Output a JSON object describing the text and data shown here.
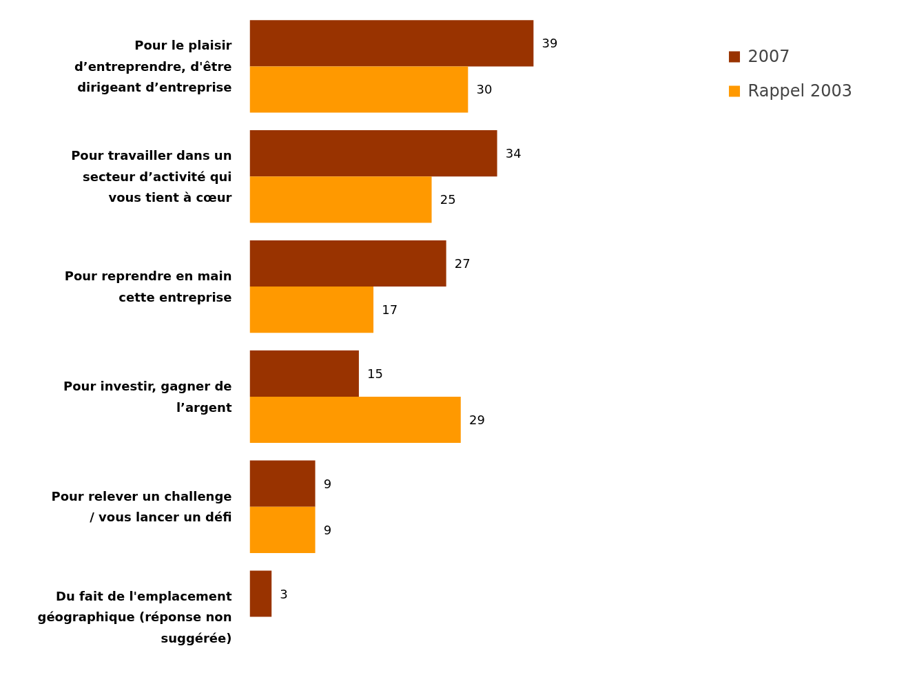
{
  "chart_data": {
    "type": "bar",
    "orientation": "horizontal",
    "categories": [
      "Pour le plaisir d’entreprendre, d'être dirigeant d’entreprise",
      "Pour travailler dans un secteur d’activité qui vous tient à cœur",
      "Pour reprendre en main cette entreprise",
      "Pour investir, gagner de l’argent",
      "Pour relever un challenge / vous lancer un défi",
      "Du fait de l'emplacement géographique (réponse non suggérée)"
    ],
    "series": [
      {
        "name": "2007",
        "color": "#993300",
        "values": [
          39,
          34,
          27,
          15,
          9,
          3
        ]
      },
      {
        "name": "Rappel 2003",
        "color": "#ff9900",
        "values": [
          30,
          25,
          17,
          29,
          9,
          null
        ]
      }
    ],
    "data_labels": true,
    "legend": "top right",
    "tick_labels": "y"
  }
}
